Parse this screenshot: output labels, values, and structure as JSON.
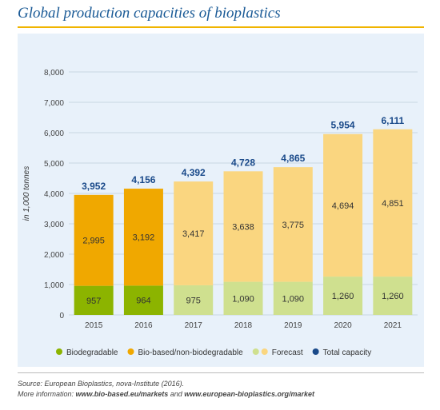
{
  "header": {
    "title": "Global production capacities of bioplastics"
  },
  "chart_data": {
    "type": "bar",
    "stacked": true,
    "categories": [
      "2015",
      "2016",
      "2017",
      "2018",
      "2019",
      "2020",
      "2021"
    ],
    "ylabel": "in 1,000 tonnes",
    "ylim": [
      0,
      8000
    ],
    "yticks": [
      0,
      1000,
      2000,
      3000,
      4000,
      5000,
      6000,
      7000,
      8000
    ],
    "ytick_labels": [
      "0",
      "1,000",
      "2,000",
      "3,000",
      "4,000",
      "5,000",
      "6,000",
      "7,000",
      "8,000"
    ],
    "grid": true,
    "legend_position": "bottom",
    "forecast_from_index": 2,
    "series": [
      {
        "name": "Biodegradable",
        "values": [
          957,
          964,
          975,
          1090,
          1090,
          1260,
          1260
        ],
        "labels": [
          "957",
          "964",
          "975",
          "1,090",
          "1,090",
          "1,260",
          "1,260"
        ],
        "color": "#8cb400",
        "forecast_color": "#cfe08f"
      },
      {
        "name": "Bio-based/non-biodegradable",
        "values": [
          2995,
          3192,
          3417,
          3638,
          3775,
          4694,
          4851
        ],
        "labels": [
          "2,995",
          "3,192",
          "3,417",
          "3,638",
          "3,775",
          "4,694",
          "4,851"
        ],
        "color": "#f0a800",
        "forecast_color": "#fad680"
      }
    ],
    "totals": {
      "name": "Total capacity",
      "values": [
        3952,
        4156,
        4392,
        4728,
        4865,
        5954,
        6111
      ],
      "labels": [
        "3,952",
        "4,156",
        "4,392",
        "4,728",
        "4,865",
        "5,954",
        "6,111"
      ],
      "color": "#1a4a8a"
    },
    "legend": [
      {
        "label": "Biodegradable",
        "colors": [
          "#8cb400"
        ]
      },
      {
        "label": "Bio-based/non-biodegradable",
        "colors": [
          "#f0a800"
        ]
      },
      {
        "label": "Forecast",
        "colors": [
          "#cfe08f",
          "#fad680"
        ]
      },
      {
        "label": "Total capacity",
        "colors": [
          "#1a4a8a"
        ]
      }
    ]
  },
  "footer": {
    "source": "Source: European Bioplastics, nova-Institute (2016).",
    "more_prefix": "More information: ",
    "link1": "www.bio-based.eu/markets",
    "and": " and ",
    "link2": "www.european-bioplastics.org/market"
  }
}
